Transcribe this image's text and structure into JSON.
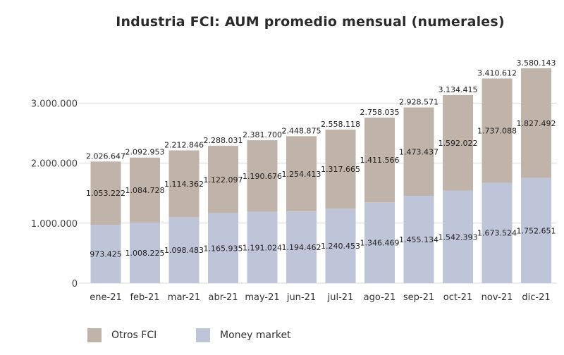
{
  "chart_data": {
    "type": "bar",
    "stacked": true,
    "title": "Industria FCI: AUM promedio mensual (numerales)",
    "categories": [
      "ene-21",
      "feb-21",
      "mar-21",
      "abr-21",
      "may-21",
      "jun-21",
      "jul-21",
      "ago-21",
      "sep-21",
      "oct-21",
      "nov-21",
      "dic-21"
    ],
    "series": [
      {
        "name": "Money market",
        "color": "#bfc5d9",
        "values": [
          973425,
          1008225,
          1098483,
          1165935,
          1191024,
          1194462,
          1240453,
          1346469,
          1455134,
          1542393,
          1673524,
          1752651
        ],
        "labels": [
          "973.425",
          "1.008.225",
          "1.098.483",
          "1.165.935",
          "1.191.024",
          "1.194.462",
          "1.240.453",
          "1.346.469",
          "1.455.134",
          "1.542.393",
          "1.673.524",
          "1.752.651"
        ]
      },
      {
        "name": "Otros FCI",
        "color": "#bfb3aa",
        "values": [
          1053222,
          1084728,
          1114362,
          1122097,
          1190676,
          1254413,
          1317665,
          1411566,
          1473437,
          1592022,
          1737088,
          1827492
        ],
        "labels": [
          "1.053.222",
          "1.084.728",
          "1.114.362",
          "1.122.097",
          "1.190.676",
          "1.254.413",
          "1.317.665",
          "1.411.566",
          "1.473.437",
          "1.592.022",
          "1.737.088",
          "1.827.492"
        ]
      }
    ],
    "totals": [
      2026647,
      2092953,
      2212846,
      2288031,
      2381700,
      2448875,
      2558118,
      2758035,
      2928571,
      3134415,
      3410612,
      3580143
    ],
    "total_labels": [
      "2.026.647",
      "2.092.953",
      "2.212.846",
      "2.288.031",
      "2.381.700",
      "2.448.875",
      "2.558.118",
      "2.758.035",
      "2.928.571",
      "3.134.415",
      "3.410.612",
      "3.580.143"
    ],
    "yticks": [
      0,
      1000000,
      2000000,
      3000000
    ],
    "ytick_labels": [
      "0",
      "1.000.000",
      "2.000.000",
      "3.000.000"
    ],
    "ylim": [
      0,
      3580143
    ],
    "grid": true,
    "legend_position": "bottom-left",
    "xlabel": "",
    "ylabel": ""
  }
}
